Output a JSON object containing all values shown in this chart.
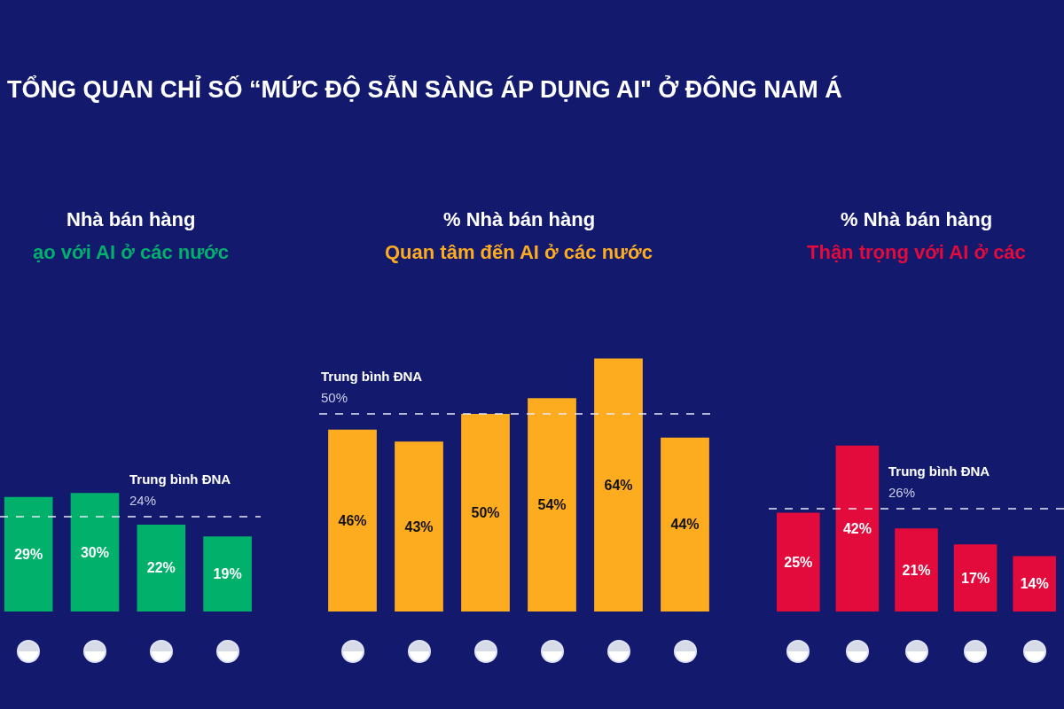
{
  "chart_data": [
    {
      "type": "bar",
      "title": "TỔNG QUAN CHỈ SỐ “MỨC ĐỘ SẴN SÀNG ÁP DỤNG AI\" Ở ĐÔNG NAM Á",
      "subtitle": "Nhà bán hàng\nạo với AI ở các nước",
      "categories": [
        null,
        null,
        null,
        null
      ],
      "values": [
        29,
        30,
        22,
        19
      ],
      "value_labels": [
        "29%",
        "30%",
        "22%",
        "19%"
      ],
      "color": "#00b06b",
      "ref_lines": [
        {
          "axis": "y",
          "value": 24,
          "label": "Trung bình ĐNA\n24%"
        }
      ]
    },
    {
      "type": "bar",
      "subtitle": "% Nhà bán hàng\nQuan tâm đến AI ở các nước",
      "categories": [
        null,
        null,
        null,
        null,
        null,
        null
      ],
      "values": [
        46,
        43,
        50,
        54,
        64,
        44
      ],
      "value_labels": [
        "46%",
        "43%",
        "50%",
        "54%",
        "64%",
        "44%"
      ],
      "color": "#fdab1f",
      "ref_lines": [
        {
          "axis": "y",
          "value": 50,
          "label": "Trung bình ĐNA\n50%"
        }
      ]
    },
    {
      "type": "bar",
      "subtitle": "% Nhà bán hàng\nThận trọng với AI ở các",
      "categories": [
        null,
        null,
        null,
        null,
        null
      ],
      "values": [
        25,
        42,
        21,
        17,
        14
      ],
      "value_labels": [
        "25%",
        "42%",
        "21%",
        "17%",
        "14%"
      ],
      "color": "#e30b3b",
      "ref_lines": [
        {
          "axis": "y",
          "value": 26,
          "label": "Trung bình ĐNA\n26%"
        }
      ]
    }
  ]
}
